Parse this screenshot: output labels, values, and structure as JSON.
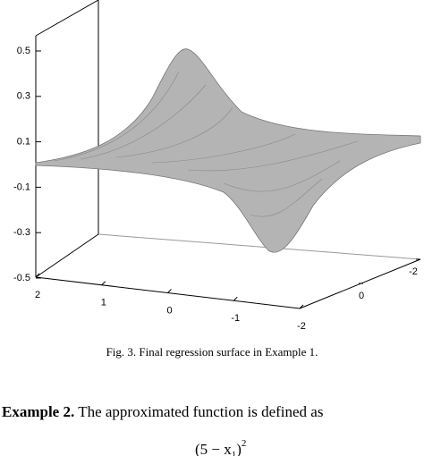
{
  "figure": {
    "zticks": [
      0.5,
      0.3,
      0.1,
      -0.1,
      -0.3,
      -0.5
    ],
    "xticks": [
      2,
      1,
      0,
      -1,
      -2
    ],
    "yticks": [
      -2,
      0
    ],
    "caption": "Fig. 3. Final regression surface in Example 1."
  },
  "paragraph": {
    "lead": "Example 2.",
    "text": "The approximated function is defined as"
  },
  "formula": {
    "open": "(5 − x",
    "sub": "1",
    "close": ")",
    "sup": "2"
  }
}
